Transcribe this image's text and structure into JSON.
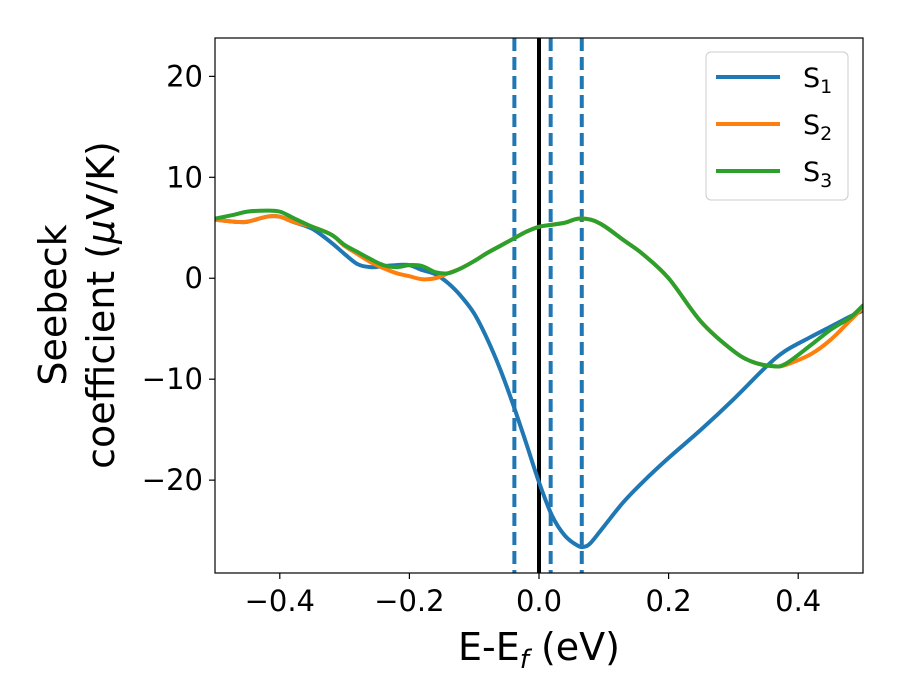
{
  "chart_data": {
    "type": "line",
    "title": "",
    "xlabel": {
      "main": "E-E",
      "sub": "f",
      "suffix": " (eV)"
    },
    "ylabel": {
      "line1": "Seebeck",
      "line2_prefix": "coefficient  (",
      "line2_mu": "μ",
      "line2_suffix": "V/K)"
    },
    "xlim": [
      -0.5,
      0.5
    ],
    "ylim": [
      -29.2,
      23.8
    ],
    "xticks": [
      -0.4,
      -0.2,
      0.0,
      0.2,
      0.4
    ],
    "xtick_labels": [
      "−0.4",
      "−0.2",
      "0.0",
      "0.2",
      "0.4"
    ],
    "yticks": [
      -20,
      -10,
      0,
      10,
      20
    ],
    "ytick_labels": [
      "−20",
      "−10",
      "0",
      "10",
      "20"
    ],
    "grid": false,
    "legend_position": "top-right",
    "vlines": [
      {
        "x": 0.0,
        "style": "solid",
        "color": "#000000"
      },
      {
        "x": -0.038,
        "style": "dashed",
        "color": "#1f77b4"
      },
      {
        "x": 0.018,
        "style": "dashed",
        "color": "#1f77b4"
      },
      {
        "x": 0.066,
        "style": "dashed",
        "color": "#1f77b4"
      }
    ],
    "series": [
      {
        "name": {
          "main": "S",
          "sub": "1"
        },
        "color": "#1f77b4",
        "x": [
          -0.5,
          -0.47,
          -0.45,
          -0.42,
          -0.4,
          -0.38,
          -0.35,
          -0.32,
          -0.3,
          -0.28,
          -0.26,
          -0.24,
          -0.22,
          -0.2,
          -0.18,
          -0.16,
          -0.14,
          -0.12,
          -0.1,
          -0.08,
          -0.06,
          -0.04,
          -0.02,
          0.0,
          0.02,
          0.04,
          0.06,
          0.07,
          0.08,
          0.1,
          0.13,
          0.16,
          0.2,
          0.25,
          0.3,
          0.35,
          0.38,
          0.42,
          0.45,
          0.48,
          0.5
        ],
        "y": [
          5.8,
          5.6,
          5.6,
          6.1,
          6.1,
          5.6,
          4.9,
          3.5,
          2.4,
          1.4,
          1.1,
          1.2,
          1.3,
          1.3,
          0.8,
          0.4,
          -0.5,
          -1.8,
          -3.5,
          -6.0,
          -9.0,
          -12.5,
          -16.3,
          -20.2,
          -23.5,
          -25.5,
          -26.5,
          -26.6,
          -26.2,
          -24.6,
          -22.2,
          -20.2,
          -17.8,
          -15.0,
          -12.0,
          -8.8,
          -7.2,
          -5.8,
          -4.8,
          -3.8,
          -3.2
        ]
      },
      {
        "name": {
          "main": "S",
          "sub": "2"
        },
        "color": "#ff7f0e",
        "x": [
          -0.5,
          -0.47,
          -0.45,
          -0.42,
          -0.4,
          -0.38,
          -0.35,
          -0.32,
          -0.3,
          -0.28,
          -0.26,
          -0.24,
          -0.22,
          -0.2,
          -0.18,
          -0.16,
          -0.14,
          -0.12,
          -0.1,
          -0.08,
          -0.06,
          -0.04,
          -0.02,
          0.0,
          0.02,
          0.04,
          0.06,
          0.08,
          0.1,
          0.13,
          0.16,
          0.2,
          0.25,
          0.3,
          0.33,
          0.36,
          0.38,
          0.42,
          0.45,
          0.48,
          0.5
        ],
        "y": [
          5.8,
          5.6,
          5.6,
          6.1,
          6.1,
          5.6,
          5.1,
          4.3,
          3.2,
          2.4,
          1.6,
          1.0,
          0.5,
          0.2,
          -0.1,
          0.0,
          0.5,
          1.0,
          1.7,
          2.5,
          3.2,
          3.9,
          4.6,
          5.1,
          5.3,
          5.5,
          5.9,
          5.8,
          5.2,
          3.8,
          2.4,
          0.0,
          -4.3,
          -7.2,
          -8.3,
          -8.7,
          -8.6,
          -7.5,
          -6.1,
          -4.2,
          -2.9
        ]
      },
      {
        "name": {
          "main": "S",
          "sub": "3"
        },
        "color": "#2ca02c",
        "x": [
          -0.5,
          -0.47,
          -0.45,
          -0.42,
          -0.4,
          -0.38,
          -0.35,
          -0.32,
          -0.3,
          -0.28,
          -0.26,
          -0.24,
          -0.22,
          -0.2,
          -0.18,
          -0.16,
          -0.14,
          -0.12,
          -0.1,
          -0.08,
          -0.06,
          -0.04,
          -0.02,
          0.0,
          0.02,
          0.04,
          0.06,
          0.08,
          0.1,
          0.13,
          0.16,
          0.2,
          0.25,
          0.3,
          0.33,
          0.36,
          0.38,
          0.42,
          0.45,
          0.48,
          0.5
        ],
        "y": [
          5.9,
          6.3,
          6.6,
          6.7,
          6.6,
          6.0,
          5.1,
          4.3,
          3.3,
          2.6,
          1.9,
          1.3,
          1.1,
          1.3,
          1.2,
          0.6,
          0.5,
          1.0,
          1.7,
          2.5,
          3.2,
          3.9,
          4.6,
          5.1,
          5.3,
          5.5,
          5.9,
          5.8,
          5.2,
          3.8,
          2.4,
          0.0,
          -4.3,
          -7.2,
          -8.3,
          -8.7,
          -8.5,
          -6.6,
          -5.1,
          -3.9,
          -2.7
        ]
      }
    ]
  }
}
